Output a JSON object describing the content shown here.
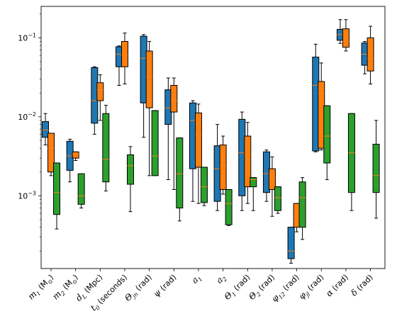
{
  "chart_data": {
    "type": "box",
    "title": "",
    "xlabel": "",
    "ylabel": "",
    "yscale": "log",
    "ylim": [
      0.00012,
      0.25
    ],
    "yticks": [
      {
        "value": 0.001,
        "base": "10",
        "exp": "−3"
      },
      {
        "value": 0.01,
        "base": "10",
        "exp": "−2"
      },
      {
        "value": 0.1,
        "base": "10",
        "exp": "−1"
      }
    ],
    "categories": [
      {
        "pre": "m",
        "sub": "1",
        "post": " (M",
        "sub2": "⊙",
        "post2": ")"
      },
      {
        "pre": "m",
        "sub": "2",
        "post": " (M",
        "sub2": "⊙",
        "post2": ")"
      },
      {
        "pre": "d",
        "sub": "L",
        "post": " (Mpc)",
        "sub2": "",
        "post2": ""
      },
      {
        "pre": "t",
        "sub": "0",
        "post": " (seconds)",
        "sub2": "",
        "post2": ""
      },
      {
        "pre": "Θ",
        "sub": "jn",
        "post": " (rad)",
        "sub2": "",
        "post2": ""
      },
      {
        "pre": "ψ",
        "sub": "",
        "post": " (rad)",
        "sub2": "",
        "post2": ""
      },
      {
        "pre": "a",
        "sub": "1",
        "post": "",
        "sub2": "",
        "post2": ""
      },
      {
        "pre": "a",
        "sub": "2",
        "post": "",
        "sub2": "",
        "post2": ""
      },
      {
        "pre": "Θ",
        "sub": "1",
        "post": " (rad)",
        "sub2": "",
        "post2": ""
      },
      {
        "pre": "Θ",
        "sub": "2",
        "post": " (rad)",
        "sub2": "",
        "post2": ""
      },
      {
        "pre": "φ",
        "sub": "12",
        "post": " (rad)",
        "sub2": "",
        "post2": ""
      },
      {
        "pre": "φ",
        "sub": "jl",
        "post": " (rad)",
        "sub2": "",
        "post2": ""
      },
      {
        "pre": "α",
        "sub": "",
        "post": " (rad)",
        "sub2": "",
        "post2": ""
      },
      {
        "pre": "δ",
        "sub": "",
        "post": " (rad)",
        "sub2": "",
        "post2": ""
      }
    ],
    "colors": [
      "#1f77b4",
      "#ff7f0e",
      "#2ca02c"
    ],
    "median_color": "#ff7f0e",
    "series": [
      {
        "boxes": [
          {
            "wl": 0.0044,
            "q1": 0.0055,
            "med": 0.0068,
            "q3": 0.0087,
            "wh": 0.011
          },
          {
            "wl": 0.0015,
            "q1": 0.0021,
            "med": 0.0032,
            "q3": 0.0049,
            "wh": 0.0052
          },
          {
            "wl": 0.006,
            "q1": 0.0083,
            "med": 0.016,
            "q3": 0.042,
            "wh": 0.043
          },
          {
            "wl": 0.025,
            "q1": 0.043,
            "med": 0.062,
            "q3": 0.077,
            "wh": 0.079
          },
          {
            "wl": 0.0055,
            "q1": 0.015,
            "med": 0.055,
            "q3": 0.105,
            "wh": 0.11
          },
          {
            "wl": 0.0016,
            "q1": 0.008,
            "med": 0.013,
            "q3": 0.022,
            "wh": 0.031
          },
          {
            "wl": 0.00085,
            "q1": 0.0022,
            "med": 0.009,
            "q3": 0.015,
            "wh": 0.016
          },
          {
            "wl": 0.00065,
            "q1": 0.00085,
            "med": 0.0022,
            "q3": 0.0043,
            "wh": 0.008
          },
          {
            "wl": 0.00065,
            "q1": 0.001,
            "med": 0.0035,
            "q3": 0.0093,
            "wh": 0.0115
          },
          {
            "wl": 0.00085,
            "q1": 0.0011,
            "med": 0.0019,
            "q3": 0.0036,
            "wh": 0.0038
          },
          {
            "wl": 0.00014,
            "q1": 0.00016,
            "med": 0.0002,
            "q3": 0.0004,
            "wh": 0.0004
          },
          {
            "wl": 0.0036,
            "q1": 0.0037,
            "med": 0.025,
            "q3": 0.057,
            "wh": 0.083
          },
          {
            "wl": 0.085,
            "q1": 0.093,
            "med": 0.11,
            "q3": 0.128,
            "wh": 0.17
          },
          {
            "wl": 0.035,
            "q1": 0.045,
            "med": 0.062,
            "q3": 0.086,
            "wh": 0.09
          }
        ]
      },
      {
        "boxes": [
          {
            "wl": 0.0018,
            "q1": 0.002,
            "med": 0.004,
            "q3": 0.0062,
            "wh": 0.0062
          },
          {
            "wl": 0.0028,
            "q1": 0.003,
            "med": 0.0034,
            "q3": 0.0036,
            "wh": 0.0036
          },
          {
            "wl": 0.009,
            "q1": 0.016,
            "med": 0.022,
            "q3": 0.027,
            "wh": 0.034
          },
          {
            "wl": 0.026,
            "q1": 0.043,
            "med": 0.06,
            "q3": 0.09,
            "wh": 0.115
          },
          {
            "wl": 0.0018,
            "q1": 0.013,
            "med": 0.032,
            "q3": 0.068,
            "wh": 0.09
          },
          {
            "wl": 0.0012,
            "q1": 0.0115,
            "med": 0.016,
            "q3": 0.025,
            "wh": 0.031
          },
          {
            "wl": 0.0008,
            "q1": 0.0023,
            "med": 0.006,
            "q3": 0.0112,
            "wh": 0.0145
          },
          {
            "wl": 0.00105,
            "q1": 0.0012,
            "med": 0.0024,
            "q3": 0.0044,
            "wh": 0.0057
          },
          {
            "wl": 0.0008,
            "q1": 0.0013,
            "med": 0.0033,
            "q3": 0.0057,
            "wh": 0.0085
          },
          {
            "wl": 0.00055,
            "q1": 0.0012,
            "med": 0.0017,
            "q3": 0.0022,
            "wh": 0.0031
          },
          {
            "wl": 0.00035,
            "q1": 0.0004,
            "med": 0.00048,
            "q3": 0.0008,
            "wh": 0.0008
          },
          {
            "wl": 0.0038,
            "q1": 0.004,
            "med": 0.02,
            "q3": 0.028,
            "wh": 0.048
          },
          {
            "wl": 0.068,
            "q1": 0.076,
            "med": 0.09,
            "q3": 0.13,
            "wh": 0.17
          },
          {
            "wl": 0.026,
            "q1": 0.038,
            "med": 0.055,
            "q3": 0.1,
            "wh": 0.14
          }
        ]
      },
      {
        "boxes": [
          {
            "wl": 0.00038,
            "q1": 0.00058,
            "med": 0.0011,
            "q3": 0.0026,
            "wh": 0.0026
          },
          {
            "wl": 0.0007,
            "q1": 0.00078,
            "med": 0.001,
            "q3": 0.0019,
            "wh": 0.0019
          },
          {
            "wl": 0.00115,
            "q1": 0.0015,
            "med": 0.0029,
            "q3": 0.011,
            "wh": 0.014
          },
          {
            "wl": 0.00063,
            "q1": 0.0014,
            "med": 0.0024,
            "q3": 0.0033,
            "wh": 0.0042
          },
          {
            "wl": 0.0018,
            "q1": 0.0018,
            "med": 0.0032,
            "q3": 0.012,
            "wh": 0.012
          },
          {
            "wl": 0.00048,
            "q1": 0.0007,
            "med": 0.0019,
            "q3": 0.0054,
            "wh": 0.0054
          },
          {
            "wl": 0.00075,
            "q1": 0.00082,
            "med": 0.0013,
            "q3": 0.0023,
            "wh": 0.0023
          },
          {
            "wl": 0.00042,
            "q1": 0.00043,
            "med": 0.0008,
            "q3": 0.0012,
            "wh": 0.0012
          },
          {
            "wl": 0.00065,
            "q1": 0.0013,
            "med": 0.0016,
            "q3": 0.0017,
            "wh": 0.0017
          },
          {
            "wl": 0.0006,
            "q1": 0.00065,
            "med": 0.00095,
            "q3": 0.0013,
            "wh": 0.0013
          },
          {
            "wl": 0.00028,
            "q1": 0.0004,
            "med": 0.00095,
            "q3": 0.0015,
            "wh": 0.0017
          },
          {
            "wl": 0.0016,
            "q1": 0.0026,
            "med": 0.0057,
            "q3": 0.0138,
            "wh": 0.0138
          },
          {
            "wl": 0.00065,
            "q1": 0.0011,
            "med": 0.0035,
            "q3": 0.011,
            "wh": 0.011
          },
          {
            "wl": 0.00052,
            "q1": 0.0011,
            "med": 0.0018,
            "q3": 0.0045,
            "wh": 0.009
          }
        ]
      }
    ]
  }
}
